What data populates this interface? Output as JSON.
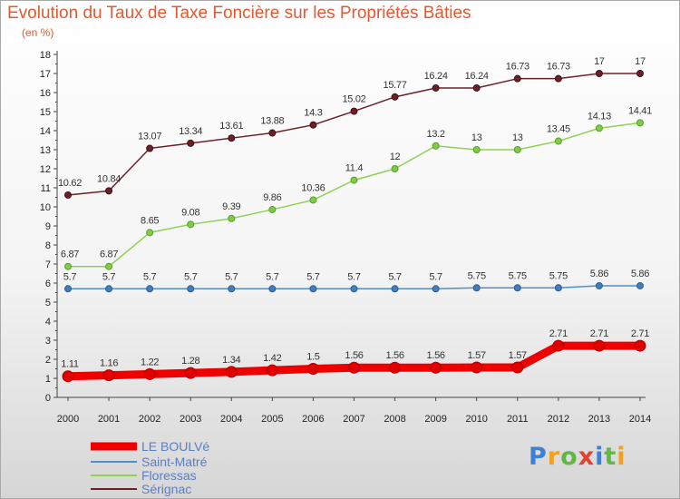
{
  "title": "Evolution du Taux de Taxe Foncière sur les Propriétés Bâties",
  "subtitle": "(en %)",
  "logo": "Proxiti",
  "colors": {
    "title": "#e8572e",
    "LE BOULVé": "#ee0000",
    "Saint-Matré": "#4f8fc6",
    "Floressas": "#8dd254",
    "Sérignac": "#6b2127"
  },
  "chart_data": {
    "type": "line",
    "categories": [
      "2000",
      "2001",
      "2002",
      "2003",
      "2004",
      "2005",
      "2006",
      "2007",
      "2008",
      "2009",
      "2010",
      "2011",
      "2012",
      "2013",
      "2014"
    ],
    "ylim": [
      0,
      18
    ],
    "yticks": [
      0,
      1,
      2,
      3,
      4,
      5,
      6,
      7,
      8,
      9,
      10,
      11,
      12,
      13,
      14,
      15,
      16,
      17,
      18
    ],
    "grid": false,
    "legend_position": "bottom-left",
    "series": [
      {
        "name": "LE BOULVé",
        "values": [
          1.11,
          1.16,
          1.22,
          1.28,
          1.34,
          1.42,
          1.5,
          1.56,
          1.56,
          1.56,
          1.57,
          1.57,
          2.71,
          2.71,
          2.71
        ],
        "labels": [
          "1.11",
          "1.16",
          "1.22",
          "1.28",
          "1.34",
          "1.42",
          "1.5",
          "1.56",
          "1.56",
          "1.56",
          "1.57",
          "1.57",
          "2.71",
          "2.71",
          "2.71"
        ]
      },
      {
        "name": "Saint-Matré",
        "values": [
          5.7,
          5.7,
          5.7,
          5.7,
          5.7,
          5.7,
          5.7,
          5.7,
          5.7,
          5.7,
          5.75,
          5.75,
          5.75,
          5.86,
          5.86
        ],
        "labels": [
          "5.7",
          "5.7",
          "5.7",
          "5.7",
          "5.7",
          "5.7",
          "5.7",
          "5.7",
          "5.7",
          "5.7",
          "5.75",
          "5.75",
          "5.75",
          "5.86",
          "5.86"
        ]
      },
      {
        "name": "Floressas",
        "values": [
          6.87,
          6.87,
          8.65,
          9.08,
          9.39,
          9.86,
          10.36,
          11.4,
          12,
          13.2,
          13,
          13,
          13.45,
          14.13,
          14.41
        ],
        "labels": [
          "6.87",
          "6.87",
          "8.65",
          "9.08",
          "9.39",
          "9.86",
          "10.36",
          "11.4",
          "12",
          "13.2",
          "13",
          "13",
          "13.45",
          "14.13",
          "14.41"
        ]
      },
      {
        "name": "Sérignac",
        "values": [
          10.62,
          10.84,
          13.07,
          13.34,
          13.61,
          13.88,
          14.3,
          15.02,
          15.77,
          16.24,
          16.24,
          16.73,
          16.73,
          17,
          17
        ],
        "labels": [
          "10.62",
          "10.84",
          "13.07",
          "13.34",
          "13.61",
          "13.88",
          "14.3",
          "15.02",
          "15.77",
          "16.24",
          "16.24",
          "16.73",
          "16.73",
          "17",
          "17"
        ]
      }
    ]
  }
}
